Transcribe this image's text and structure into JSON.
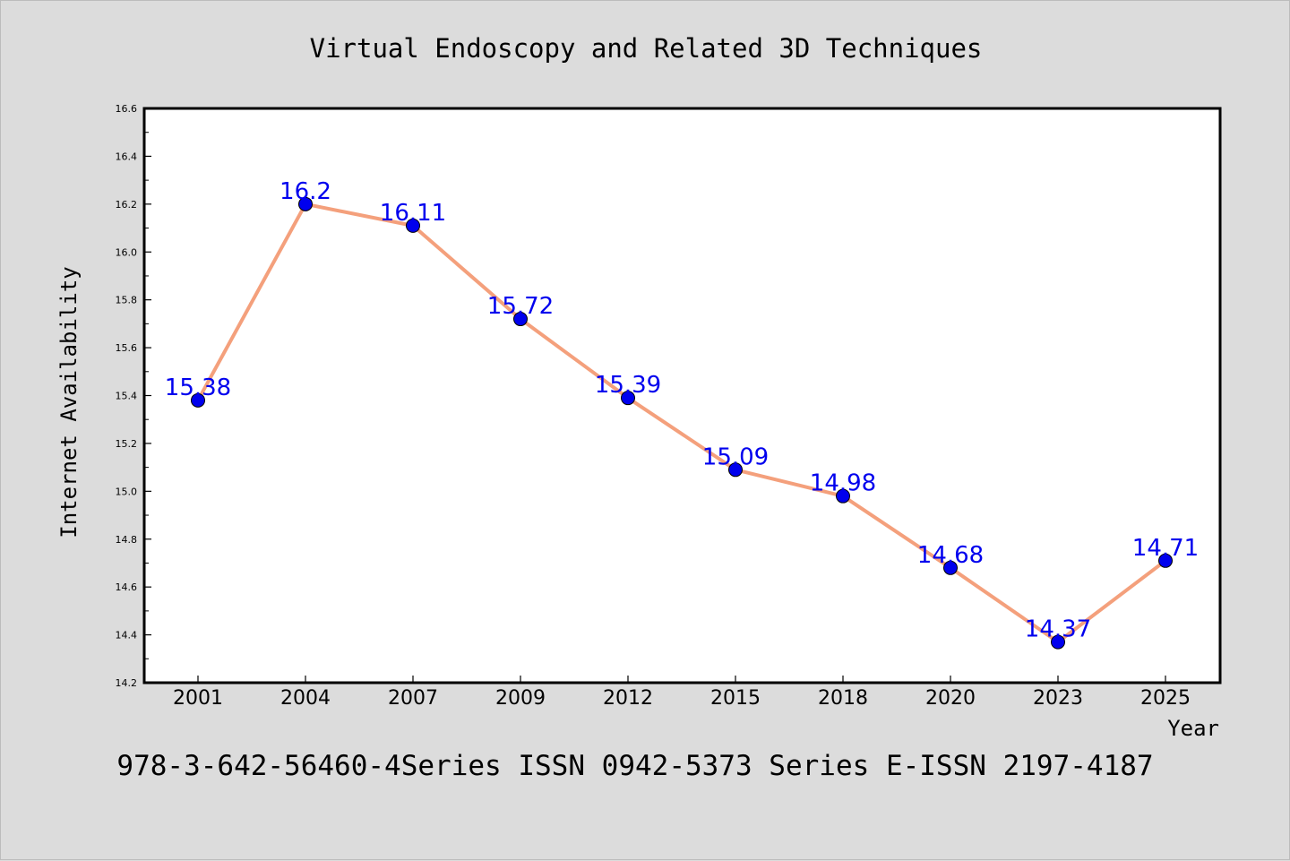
{
  "chart_data": {
    "type": "line",
    "title": "Virtual Endoscopy and Related 3D Techniques",
    "xlabel": "Year",
    "ylabel": "Internet Availability",
    "categories": [
      "2001",
      "2004",
      "2007",
      "2009",
      "2012",
      "2015",
      "2018",
      "2020",
      "2023",
      "2025"
    ],
    "series": [
      {
        "values": [
          15.38,
          16.2,
          16.11,
          15.72,
          15.39,
          15.09,
          14.98,
          14.68,
          14.37,
          14.71
        ],
        "data_labels": [
          "15.38",
          "16.2",
          "16.11",
          "15.72",
          "15.39",
          "15.09",
          "14.98",
          "14.68",
          "14.37",
          "14.71"
        ],
        "line_color": "#f4a07c",
        "marker_color": "#0000ee",
        "label_color": "#0000ee"
      }
    ],
    "ylim": [
      14.2,
      16.6
    ],
    "yticks": [
      "14.2",
      "14.4",
      "14.6",
      "14.8",
      "15.0",
      "15.2",
      "15.4",
      "15.6",
      "15.8",
      "16.0",
      "16.2",
      "16.4",
      "16.6"
    ],
    "grid": false,
    "legend": "none"
  },
  "footer": {
    "text": "978-3-642-56460-4Series ISSN 0942-5373 Series E-ISSN 2197-4187"
  }
}
